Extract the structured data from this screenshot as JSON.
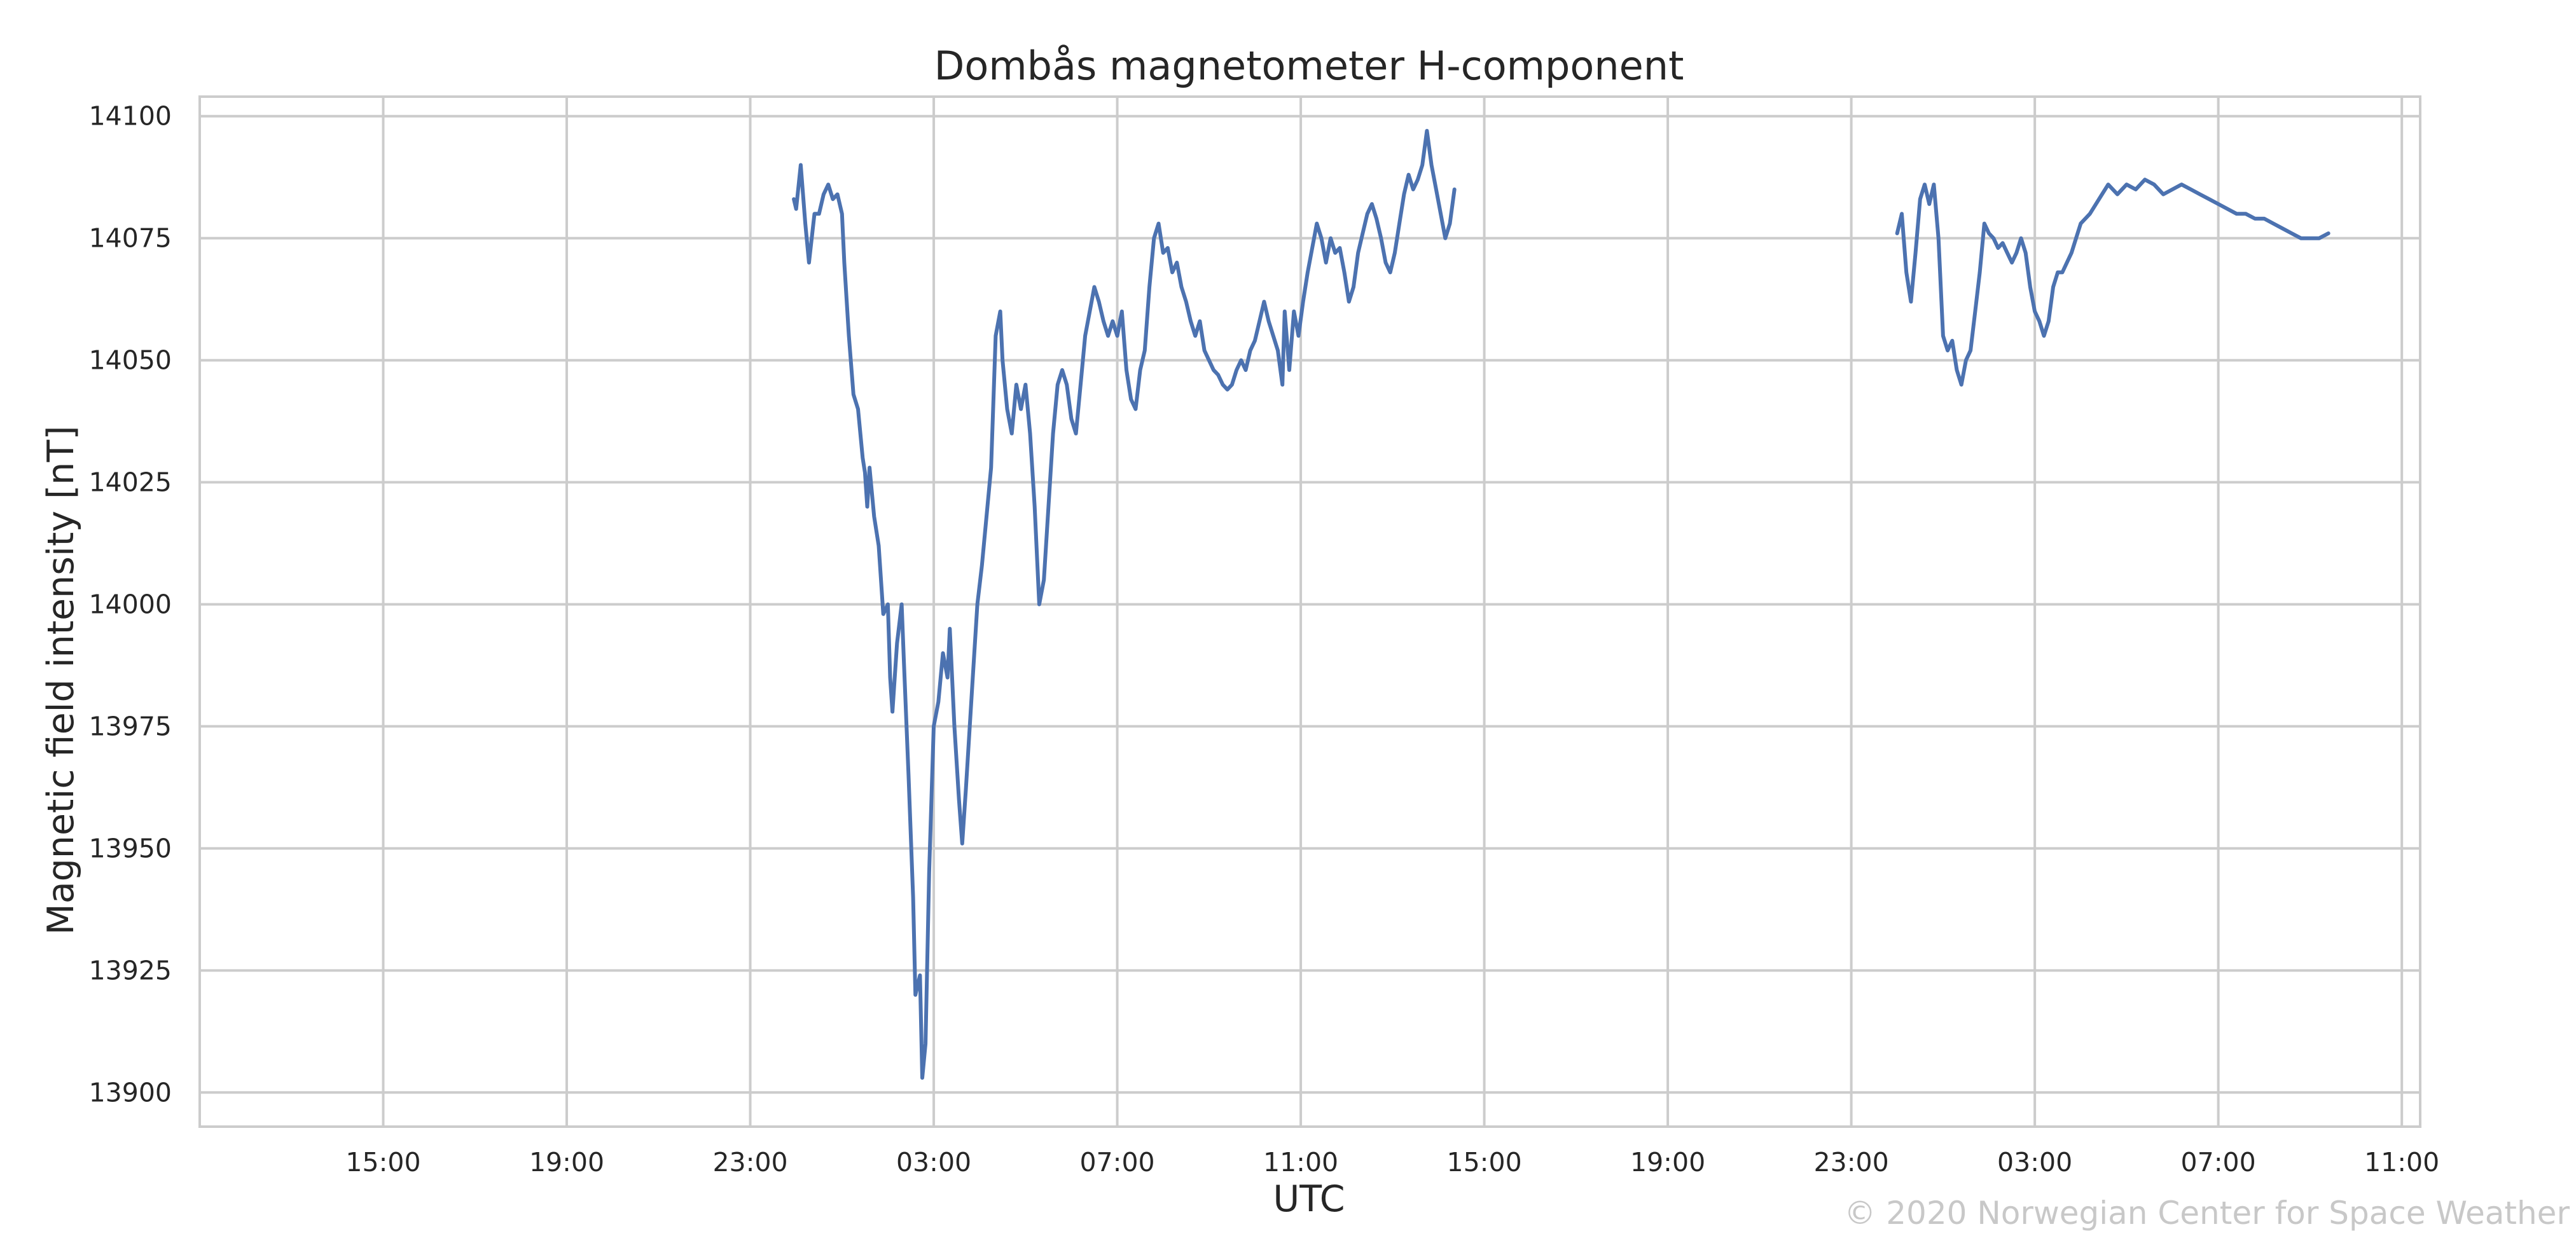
{
  "chart_data": {
    "type": "line",
    "title": "Dombås magnetometer H-component",
    "xlabel": "UTC",
    "ylabel": "Magnetic field intensity [nT]",
    "credit": "© 2020 Norwegian Center for Space Weather",
    "x_unit": "hours elapsed since first day 11:00 UTC",
    "xlim": [
      0,
      48.4
    ],
    "ylim": [
      13893,
      14104
    ],
    "xticks": [
      {
        "x": 4,
        "label": "15:00"
      },
      {
        "x": 8,
        "label": "19:00"
      },
      {
        "x": 12,
        "label": "23:00"
      },
      {
        "x": 16,
        "label": "03:00"
      },
      {
        "x": 20,
        "label": "07:00"
      },
      {
        "x": 24,
        "label": "11:00"
      },
      {
        "x": 28,
        "label": "15:00"
      },
      {
        "x": 32,
        "label": "19:00"
      },
      {
        "x": 36,
        "label": "23:00"
      },
      {
        "x": 40,
        "label": "03:00"
      },
      {
        "x": 44,
        "label": "07:00"
      },
      {
        "x": 48,
        "label": "11:00"
      }
    ],
    "yticks": [
      {
        "y": 13900,
        "label": "13900"
      },
      {
        "y": 13925,
        "label": "13925"
      },
      {
        "y": 13950,
        "label": "13950"
      },
      {
        "y": 13975,
        "label": "13975"
      },
      {
        "y": 14000,
        "label": "14000"
      },
      {
        "y": 14025,
        "label": "14025"
      },
      {
        "y": 14050,
        "label": "14050"
      },
      {
        "y": 14075,
        "label": "14075"
      },
      {
        "y": 14100,
        "label": "14100"
      }
    ],
    "grid": true,
    "line_color": "#4c72b0",
    "grid_color": "#cccccc",
    "series": [
      {
        "name": "",
        "segments": [
          [
            [
              12.95,
              14083
            ],
            [
              13.0,
              14081
            ],
            [
              13.1,
              14090
            ],
            [
              13.2,
              14078
            ],
            [
              13.28,
              14070
            ],
            [
              13.4,
              14080
            ],
            [
              13.5,
              14080
            ],
            [
              13.6,
              14084
            ],
            [
              13.7,
              14086
            ],
            [
              13.8,
              14083
            ],
            [
              13.9,
              14084
            ],
            [
              14.0,
              14080
            ],
            [
              14.05,
              14070
            ],
            [
              14.15,
              14055
            ],
            [
              14.25,
              14043
            ],
            [
              14.35,
              14040
            ],
            [
              14.45,
              14030
            ],
            [
              14.5,
              14027
            ],
            [
              14.55,
              14020
            ],
            [
              14.6,
              14028
            ],
            [
              14.7,
              14018
            ],
            [
              14.8,
              14012
            ],
            [
              14.9,
              13998
            ],
            [
              15.0,
              14000
            ],
            [
              15.05,
              13985
            ],
            [
              15.1,
              13978
            ],
            [
              15.2,
              13992
            ],
            [
              15.3,
              14000
            ],
            [
              15.35,
              13988
            ],
            [
              15.45,
              13965
            ],
            [
              15.55,
              13940
            ],
            [
              15.6,
              13920
            ],
            [
              15.7,
              13924
            ],
            [
              15.75,
              13903
            ],
            [
              15.82,
              13910
            ],
            [
              15.9,
              13945
            ],
            [
              16.0,
              13975
            ],
            [
              16.1,
              13980
            ],
            [
              16.2,
              13990
            ],
            [
              16.3,
              13985
            ],
            [
              16.35,
              13995
            ],
            [
              16.45,
              13975
            ],
            [
              16.55,
              13960
            ],
            [
              16.62,
              13951
            ],
            [
              16.7,
              13962
            ],
            [
              16.85,
              13985
            ],
            [
              16.95,
              14000
            ],
            [
              17.05,
              14008
            ],
            [
              17.15,
              14018
            ],
            [
              17.25,
              14028
            ],
            [
              17.35,
              14055
            ],
            [
              17.45,
              14060
            ],
            [
              17.5,
              14050
            ],
            [
              17.6,
              14040
            ],
            [
              17.7,
              14035
            ],
            [
              17.8,
              14045
            ],
            [
              17.9,
              14040
            ],
            [
              18.0,
              14045
            ],
            [
              18.1,
              14035
            ],
            [
              18.2,
              14020
            ],
            [
              18.3,
              14000
            ],
            [
              18.4,
              14005
            ],
            [
              18.5,
              14020
            ],
            [
              18.6,
              14035
            ],
            [
              18.7,
              14045
            ],
            [
              18.8,
              14048
            ],
            [
              18.9,
              14045
            ],
            [
              19.0,
              14038
            ],
            [
              19.1,
              14035
            ],
            [
              19.2,
              14045
            ],
            [
              19.3,
              14055
            ],
            [
              19.4,
              14060
            ],
            [
              19.5,
              14065
            ],
            [
              19.6,
              14062
            ],
            [
              19.7,
              14058
            ],
            [
              19.8,
              14055
            ],
            [
              19.9,
              14058
            ],
            [
              20.0,
              14055
            ],
            [
              20.1,
              14060
            ],
            [
              20.2,
              14048
            ],
            [
              20.3,
              14042
            ],
            [
              20.4,
              14040
            ],
            [
              20.5,
              14048
            ],
            [
              20.6,
              14052
            ],
            [
              20.7,
              14065
            ],
            [
              20.8,
              14075
            ],
            [
              20.9,
              14078
            ],
            [
              21.0,
              14072
            ],
            [
              21.1,
              14073
            ],
            [
              21.2,
              14068
            ],
            [
              21.3,
              14070
            ],
            [
              21.4,
              14065
            ],
            [
              21.5,
              14062
            ],
            [
              21.6,
              14058
            ],
            [
              21.7,
              14055
            ],
            [
              21.8,
              14058
            ],
            [
              21.9,
              14052
            ],
            [
              22.0,
              14050
            ],
            [
              22.1,
              14048
            ],
            [
              22.2,
              14047
            ],
            [
              22.3,
              14045
            ],
            [
              22.4,
              14044
            ],
            [
              22.5,
              14045
            ],
            [
              22.6,
              14048
            ],
            [
              22.7,
              14050
            ],
            [
              22.8,
              14048
            ],
            [
              22.9,
              14052
            ],
            [
              23.0,
              14054
            ],
            [
              23.1,
              14058
            ],
            [
              23.2,
              14062
            ],
            [
              23.3,
              14058
            ],
            [
              23.4,
              14055
            ],
            [
              23.5,
              14052
            ],
            [
              23.6,
              14045
            ],
            [
              23.65,
              14060
            ],
            [
              23.75,
              14048
            ],
            [
              23.85,
              14060
            ],
            [
              23.95,
              14055
            ],
            [
              24.05,
              14062
            ],
            [
              24.15,
              14068
            ],
            [
              24.25,
              14073
            ],
            [
              24.35,
              14078
            ],
            [
              24.45,
              14075
            ],
            [
              24.55,
              14070
            ],
            [
              24.65,
              14075
            ],
            [
              24.75,
              14072
            ],
            [
              24.85,
              14073
            ],
            [
              24.95,
              14068
            ],
            [
              25.05,
              14062
            ],
            [
              25.15,
              14065
            ],
            [
              25.25,
              14072
            ],
            [
              25.35,
              14076
            ],
            [
              25.45,
              14080
            ],
            [
              25.55,
              14082
            ],
            [
              25.65,
              14079
            ],
            [
              25.75,
              14075
            ],
            [
              25.85,
              14070
            ],
            [
              25.95,
              14068
            ],
            [
              26.05,
              14072
            ],
            [
              26.15,
              14078
            ],
            [
              26.25,
              14084
            ],
            [
              26.35,
              14088
            ],
            [
              26.45,
              14085
            ],
            [
              26.55,
              14087
            ],
            [
              26.65,
              14090
            ],
            [
              26.75,
              14097
            ],
            [
              26.85,
              14090
            ],
            [
              26.95,
              14085
            ],
            [
              27.05,
              14080
            ],
            [
              27.15,
              14075
            ],
            [
              27.25,
              14078
            ],
            [
              27.35,
              14085
            ]
          ],
          [
            [
              37.0,
              14076
            ],
            [
              37.1,
              14080
            ],
            [
              37.2,
              14068
            ],
            [
              37.3,
              14062
            ],
            [
              37.4,
              14072
            ],
            [
              37.5,
              14083
            ],
            [
              37.6,
              14086
            ],
            [
              37.7,
              14082
            ],
            [
              37.8,
              14086
            ],
            [
              37.9,
              14075
            ],
            [
              38.0,
              14055
            ],
            [
              38.1,
              14052
            ],
            [
              38.2,
              14054
            ],
            [
              38.3,
              14048
            ],
            [
              38.4,
              14045
            ],
            [
              38.5,
              14050
            ],
            [
              38.6,
              14052
            ],
            [
              38.7,
              14060
            ],
            [
              38.8,
              14068
            ],
            [
              38.9,
              14078
            ],
            [
              39.0,
              14076
            ],
            [
              39.1,
              14075
            ],
            [
              39.2,
              14073
            ],
            [
              39.3,
              14074
            ],
            [
              39.4,
              14072
            ],
            [
              39.5,
              14070
            ],
            [
              39.6,
              14072
            ],
            [
              39.7,
              14075
            ],
            [
              39.8,
              14072
            ],
            [
              39.9,
              14065
            ],
            [
              40.0,
              14060
            ],
            [
              40.1,
              14058
            ],
            [
              40.2,
              14055
            ],
            [
              40.3,
              14058
            ],
            [
              40.4,
              14065
            ],
            [
              40.5,
              14068
            ],
            [
              40.6,
              14068
            ],
            [
              40.7,
              14070
            ],
            [
              40.8,
              14072
            ],
            [
              40.9,
              14075
            ],
            [
              41.0,
              14078
            ],
            [
              41.2,
              14080
            ],
            [
              41.4,
              14083
            ],
            [
              41.6,
              14086
            ],
            [
              41.8,
              14084
            ],
            [
              42.0,
              14086
            ],
            [
              42.2,
              14085
            ],
            [
              42.4,
              14087
            ],
            [
              42.6,
              14086
            ],
            [
              42.8,
              14084
            ],
            [
              43.0,
              14085
            ],
            [
              43.2,
              14086
            ],
            [
              43.4,
              14085
            ],
            [
              43.6,
              14084
            ],
            [
              43.8,
              14083
            ],
            [
              44.0,
              14082
            ],
            [
              44.2,
              14081
            ],
            [
              44.4,
              14080
            ],
            [
              44.6,
              14080
            ],
            [
              44.8,
              14079
            ],
            [
              45.0,
              14079
            ],
            [
              45.2,
              14078
            ],
            [
              45.4,
              14077
            ],
            [
              45.6,
              14076
            ],
            [
              45.8,
              14075
            ],
            [
              46.0,
              14075
            ],
            [
              46.2,
              14075
            ],
            [
              46.4,
              14076
            ]
          ]
        ]
      }
    ]
  }
}
